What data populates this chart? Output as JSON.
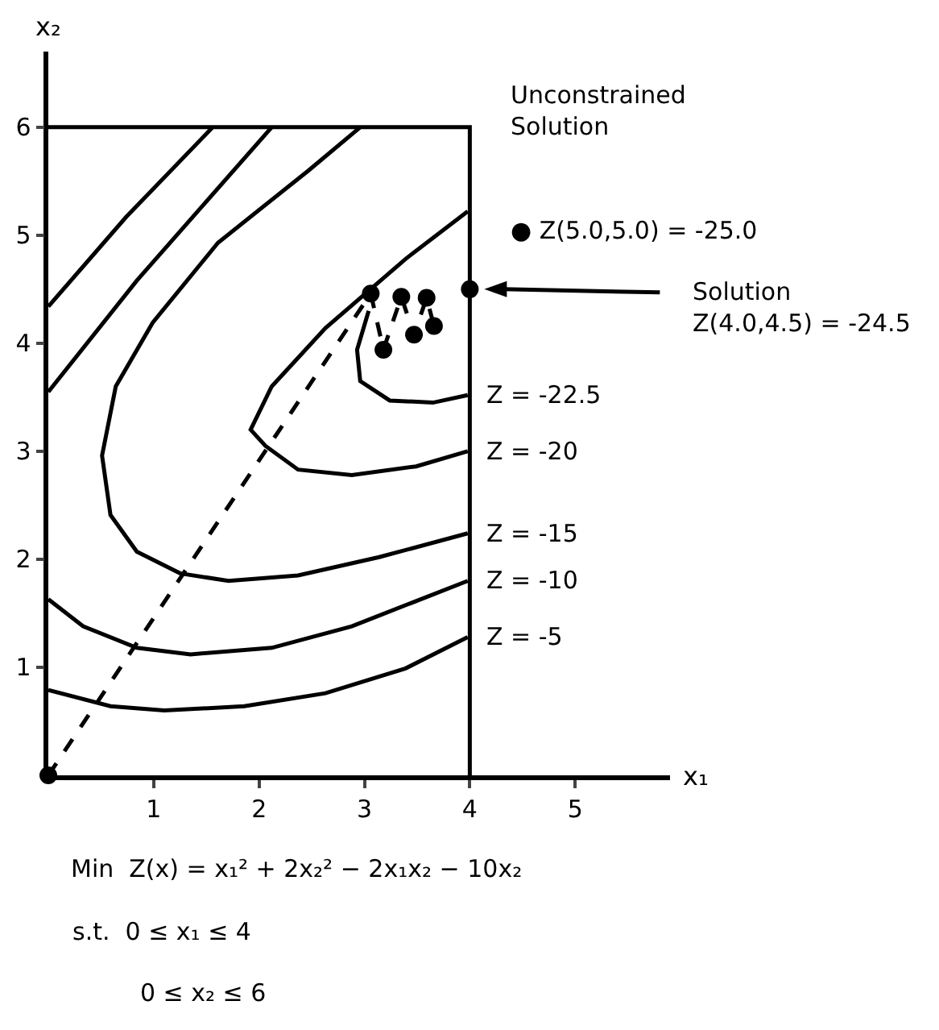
{
  "chart_data": {
    "type": "line",
    "xlabel": "x₁",
    "ylabel": "x₂",
    "xlim": [
      0,
      5.9
    ],
    "ylim": [
      0,
      6.7
    ],
    "xticks": [
      1,
      2,
      3,
      4,
      5
    ],
    "yticks": [
      1,
      2,
      3,
      4,
      5,
      6
    ],
    "grid": false,
    "legend": false,
    "series": [
      {
        "name": "Z = -22.5",
        "color": "#000000",
        "x": [
          3.04,
          2.93,
          2.96,
          3.24,
          3.65,
          3.98
        ],
        "values": [
          4.3,
          3.94,
          3.65,
          3.47,
          3.45,
          3.52
        ]
      },
      {
        "name": "Z = -20",
        "color": "#000000",
        "x": [
          3.98,
          3.39,
          2.63,
          2.12,
          1.92,
          2.06,
          2.37,
          2.88,
          3.49,
          3.98
        ],
        "values": [
          5.22,
          4.78,
          4.14,
          3.6,
          3.2,
          3.05,
          2.83,
          2.78,
          2.86,
          3.0
        ]
      },
      {
        "name": "Z = -15",
        "color": "#000000",
        "x": [
          2.96,
          2.47,
          1.61,
          0.99,
          0.64,
          0.51,
          0.59,
          0.84,
          1.25,
          1.71,
          2.37,
          3.14,
          3.98
        ],
        "values": [
          6.0,
          5.6,
          4.93,
          4.19,
          3.6,
          2.96,
          2.41,
          2.07,
          1.87,
          1.8,
          1.85,
          2.02,
          2.24
        ]
      },
      {
        "name": "Z = -10",
        "color": "#000000",
        "x": [
          0,
          0.84,
          2.12,
          null,
          0,
          0.33,
          0.84,
          1.35,
          2.12,
          2.88,
          3.98
        ],
        "values": [
          3.55,
          4.58,
          6.0,
          null,
          1.63,
          1.38,
          1.18,
          1.12,
          1.18,
          1.38,
          1.8
        ]
      },
      {
        "name": "Z = -5",
        "color": "#000000",
        "x": [
          0,
          0.74,
          1.56,
          null,
          0,
          0.59,
          1.1,
          1.86,
          2.63,
          3.39,
          3.98
        ],
        "values": [
          4.34,
          5.17,
          6.0,
          null,
          0.79,
          0.64,
          0.6,
          0.64,
          0.76,
          0.99,
          1.28
        ]
      },
      {
        "color": "#000000",
        "x": [
          0,
          4,
          4
        ],
        "values": [
          6,
          6,
          0
        ]
      },
      {
        "color": "#000000",
        "line_style": "dashed",
        "marker": "circle",
        "x": [
          0,
          3.06,
          3.18,
          3.35,
          3.47,
          3.59,
          3.66
        ],
        "values": [
          0,
          4.46,
          3.94,
          4.43,
          4.08,
          4.42,
          4.16
        ]
      },
      {
        "type": "scatter",
        "color": "#000000",
        "marker": "circle",
        "x": [
          4.0
        ],
        "values": [
          4.5
        ]
      }
    ],
    "annotations": [
      "Unconstrained\nSolution",
      "● Z(5.0,5.0) = -25.0",
      "Solution\nZ(4.0,4.5) = -24.5",
      "Min  Z(x) = x₁² + 2x₂² − 2x₁x₂ − 10x₂",
      "s.t.  0 ≤ x₁ ≤ 4",
      "0 ≤ x₂ ≤ 6"
    ]
  }
}
